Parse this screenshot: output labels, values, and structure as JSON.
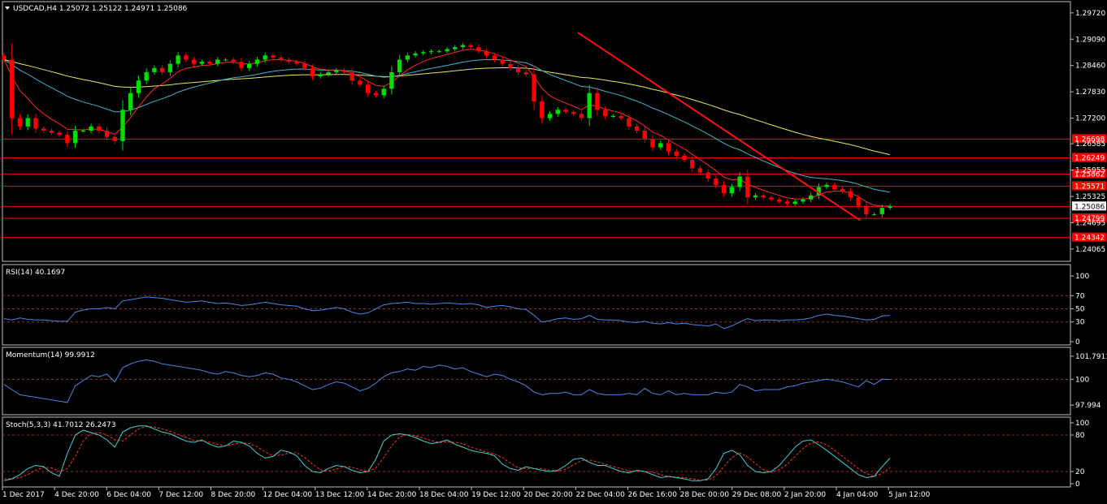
{
  "symbol_header": "USDCAD,H4  1.25072 1.25122 1.24971 1.25086",
  "colors": {
    "background": "#000000",
    "frame": "#c0c0c0",
    "bull": "#00e000",
    "bear": "#ff0000",
    "ma_fast": "#ff2a2a",
    "ma_mid": "#3fb7c9",
    "ma_slow": "#e8e85a",
    "trendline": "#ff1010",
    "level": "#ff0000",
    "indicator": "#4a86e8",
    "stoch_main": "#40d0d0",
    "stoch_signal": "#ff3030"
  },
  "chart_data": [
    {
      "type": "candlestick",
      "title": "USDCAD,H4  1.25072 1.25122 1.24971 1.25086",
      "ylim": [
        1.2379,
        1.2997
      ],
      "y_ticks": [
        "1.29720",
        "1.29090",
        "1.28460",
        "1.27830",
        "1.27200",
        "1.26585",
        "1.25955",
        "1.25325",
        "1.24695",
        "1.24065"
      ],
      "current_price": "1.25086",
      "horizontal_levels": [
        {
          "value": 1.26698,
          "label": "1.26698"
        },
        {
          "value": 1.26249,
          "label": "1.26249"
        },
        {
          "value": 1.25862,
          "label": "1.25862"
        },
        {
          "value": 1.25571,
          "label": "1.25571"
        },
        {
          "value": 1.25086,
          "label": null
        },
        {
          "value": 1.24799,
          "label": "1.24799"
        },
        {
          "value": 1.24342,
          "label": "1.24342"
        }
      ],
      "trendline": {
        "start": [
          0.538,
          1.2925
        ],
        "end": [
          0.803,
          1.2475
        ]
      },
      "closes": [
        1.286,
        1.272,
        1.27,
        1.272,
        1.2695,
        1.269,
        1.2685,
        1.268,
        1.266,
        1.269,
        1.269,
        1.27,
        1.269,
        1.2675,
        1.2665,
        1.274,
        1.278,
        1.281,
        1.283,
        1.284,
        1.283,
        1.285,
        1.287,
        1.286,
        1.285,
        1.2855,
        1.285,
        1.286,
        1.286,
        1.2855,
        1.284,
        1.285,
        1.286,
        1.287,
        1.2865,
        1.286,
        1.2855,
        1.285,
        1.284,
        1.282,
        1.2825,
        1.283,
        1.2835,
        1.283,
        1.281,
        1.28,
        1.278,
        1.2775,
        1.279,
        1.283,
        1.286,
        1.287,
        1.2875,
        1.2878,
        1.288,
        1.288,
        1.2885,
        1.289,
        1.2895,
        1.289,
        1.288,
        1.287,
        1.286,
        1.285,
        1.284,
        1.283,
        1.2825,
        1.276,
        1.272,
        1.273,
        1.274,
        1.2735,
        1.273,
        1.272,
        1.278,
        1.274,
        1.2725,
        1.2725,
        1.272,
        1.27,
        1.269,
        1.267,
        1.265,
        1.266,
        1.264,
        1.263,
        1.262,
        1.26,
        1.259,
        1.2575,
        1.256,
        1.254,
        1.2555,
        1.258,
        1.253,
        1.2535,
        1.253,
        1.2525,
        1.252,
        1.2515,
        1.252,
        1.2525,
        1.2535,
        1.2555,
        1.256,
        1.255,
        1.2545,
        1.253,
        1.251,
        1.249,
        1.249,
        1.2505,
        1.2509
      ]
    },
    {
      "type": "line",
      "title": "RSI(14) 40.1697",
      "ylim": [
        0,
        100
      ],
      "y_ticks": [
        "100",
        "70",
        "50",
        "30",
        "0"
      ],
      "levels": [
        70,
        50,
        30
      ],
      "values": [
        35,
        33,
        36,
        34,
        33,
        33,
        32,
        31,
        31,
        45,
        48,
        50,
        50,
        52,
        50,
        62,
        64,
        66,
        68,
        67,
        66,
        64,
        62,
        60,
        61,
        62,
        60,
        58,
        59,
        57,
        55,
        56,
        58,
        60,
        58,
        56,
        55,
        54,
        50,
        47,
        48,
        50,
        52,
        50,
        45,
        42,
        44,
        50,
        56,
        58,
        59,
        60,
        58,
        58,
        57,
        58,
        59,
        58,
        57,
        58,
        56,
        52,
        54,
        55,
        53,
        50,
        49,
        40,
        30,
        32,
        35,
        36,
        34,
        35,
        40,
        34,
        33,
        33,
        32,
        30,
        29,
        31,
        28,
        27,
        29,
        27,
        28,
        26,
        25,
        24,
        27,
        20,
        24,
        30,
        35,
        32,
        33,
        33,
        32,
        33,
        33,
        34,
        36,
        40,
        42,
        40,
        39,
        37,
        35,
        33,
        34,
        39,
        40
      ]
    },
    {
      "type": "line",
      "title": "Momentum(14) 99.9912",
      "ylim": [
        97.5,
        102.1
      ],
      "y_ticks": [
        "101.7911",
        "100",
        "97.994"
      ],
      "levels": [
        100
      ],
      "values": [
        99.6,
        99.2,
        98.8,
        98.7,
        98.6,
        98.5,
        98.4,
        98.3,
        98.2,
        99.5,
        99.9,
        100.3,
        100.2,
        100.4,
        99.8,
        100.9,
        101.2,
        101.4,
        101.5,
        101.4,
        101.2,
        101.1,
        101.0,
        100.9,
        100.8,
        100.7,
        100.5,
        100.4,
        100.6,
        100.5,
        100.3,
        100.2,
        100.3,
        100.5,
        100.4,
        100.1,
        100.0,
        99.8,
        99.5,
        99.2,
        99.3,
        99.6,
        99.8,
        99.7,
        99.4,
        99.1,
        99.3,
        99.7,
        100.2,
        100.5,
        100.6,
        100.8,
        100.7,
        101.0,
        100.9,
        101.1,
        101.0,
        100.8,
        100.9,
        100.6,
        100.4,
        100.2,
        100.4,
        100.3,
        100.0,
        99.8,
        99.5,
        99.0,
        98.8,
        98.9,
        98.9,
        99.0,
        98.8,
        98.8,
        99.2,
        98.9,
        98.8,
        98.8,
        98.8,
        98.9,
        98.8,
        99.3,
        98.9,
        98.8,
        99.1,
        98.8,
        98.9,
        98.8,
        98.8,
        98.8,
        99.0,
        98.9,
        99.0,
        99.6,
        99.4,
        99.1,
        99.2,
        99.2,
        99.2,
        99.4,
        99.5,
        99.7,
        99.8,
        99.9,
        100.0,
        99.9,
        99.8,
        99.6,
        99.4,
        99.9,
        99.6,
        100.0,
        99.99
      ]
    },
    {
      "type": "line",
      "title": "Stoch(5,3,3) 41.7012 26.2473",
      "ylim": [
        0,
        100
      ],
      "y_ticks": [
        "100",
        "80",
        "20",
        "0"
      ],
      "levels": [
        80,
        20
      ],
      "main": [
        5,
        8,
        15,
        25,
        30,
        28,
        18,
        12,
        50,
        80,
        88,
        84,
        80,
        72,
        60,
        85,
        92,
        95,
        95,
        90,
        85,
        82,
        76,
        70,
        68,
        72,
        65,
        60,
        62,
        70,
        68,
        62,
        50,
        42,
        45,
        55,
        52,
        46,
        30,
        20,
        18,
        25,
        30,
        28,
        22,
        18,
        20,
        40,
        70,
        80,
        82,
        80,
        76,
        70,
        66,
        68,
        72,
        65,
        60,
        55,
        52,
        50,
        46,
        32,
        25,
        22,
        28,
        25,
        22,
        20,
        22,
        30,
        40,
        42,
        35,
        30,
        30,
        25,
        20,
        18,
        22,
        20,
        15,
        10,
        12,
        10,
        8,
        5,
        5,
        8,
        25,
        50,
        55,
        48,
        30,
        20,
        18,
        20,
        30,
        45,
        60,
        70,
        72,
        64,
        55,
        45,
        35,
        25,
        15,
        10,
        12,
        28,
        42
      ],
      "signal": [
        8,
        8,
        10,
        15,
        22,
        27,
        26,
        20,
        25,
        45,
        70,
        83,
        84,
        80,
        72,
        70,
        80,
        90,
        94,
        93,
        90,
        86,
        81,
        76,
        71,
        70,
        68,
        65,
        62,
        65,
        67,
        66,
        61,
        52,
        46,
        47,
        50,
        51,
        43,
        32,
        23,
        21,
        24,
        28,
        27,
        23,
        20,
        26,
        43,
        62,
        77,
        81,
        79,
        75,
        71,
        68,
        69,
        68,
        66,
        60,
        56,
        52,
        49,
        43,
        34,
        26,
        25,
        25,
        25,
        22,
        21,
        24,
        31,
        38,
        39,
        36,
        32,
        28,
        25,
        21,
        20,
        20,
        19,
        15,
        12,
        11,
        10,
        8,
        6,
        6,
        13,
        28,
        43,
        51,
        44,
        33,
        23,
        19,
        23,
        32,
        45,
        58,
        67,
        69,
        64,
        55,
        45,
        35,
        25,
        17,
        12,
        17,
        26
      ]
    }
  ],
  "x_axis_labels": [
    "1 Dec 2017",
    "4 Dec 20:00",
    "6 Dec 04:00",
    "7 Dec 12:00",
    "8 Dec 20:00",
    "12 Dec 04:00",
    "13 Dec 12:00",
    "14 Dec 20:00",
    "18 Dec 04:00",
    "19 Dec 12:00",
    "20 Dec 20:00",
    "22 Dec 04:00",
    "26 Dec 16:00",
    "28 Dec 00:00",
    "29 Dec 08:00",
    "2 Jan 20:00",
    "4 Jan 04:00",
    "5 Jan 12:00"
  ]
}
